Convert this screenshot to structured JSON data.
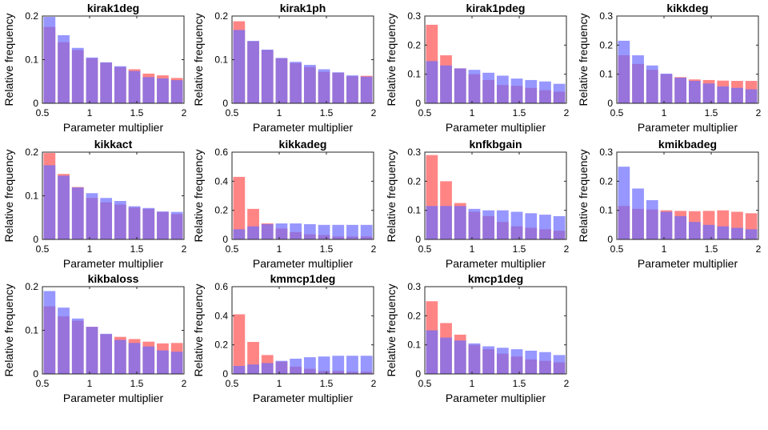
{
  "figure": {
    "background": "#ffffff",
    "red_color": "#ff5c5c",
    "blue_color": "#6b6bff",
    "overlap_color": "#b0306e"
  },
  "chart_data": [
    {
      "type": "bar",
      "title": "kirak1deg",
      "xlabel": "Parameter multiplier",
      "ylabel": "Relative frequency",
      "xlim": [
        0.5,
        2
      ],
      "ylim": [
        0,
        0.2
      ],
      "xticks": [
        "0.5",
        "1",
        "1.5",
        "2"
      ],
      "yticks": [
        "0",
        "0.1",
        "0.2"
      ],
      "x": [
        0.575,
        0.725,
        0.875,
        1.025,
        1.175,
        1.325,
        1.475,
        1.625,
        1.775,
        1.925
      ],
      "series": [
        {
          "name": "red",
          "values": [
            0.175,
            0.14,
            0.122,
            0.103,
            0.093,
            0.083,
            0.078,
            0.068,
            0.064,
            0.058
          ]
        },
        {
          "name": "blue",
          "values": [
            0.198,
            0.156,
            0.127,
            0.105,
            0.094,
            0.085,
            0.074,
            0.06,
            0.057,
            0.053
          ]
        }
      ]
    },
    {
      "type": "bar",
      "title": "kirak1ph",
      "xlabel": "Parameter multiplier",
      "ylabel": "Relative frequency",
      "xlim": [
        0.5,
        2
      ],
      "ylim": [
        0,
        0.2
      ],
      "xticks": [
        "0.5",
        "1",
        "1.5",
        "2"
      ],
      "yticks": [
        "0",
        "0.1",
        "0.2"
      ],
      "x": [
        0.575,
        0.725,
        0.875,
        1.025,
        1.175,
        1.325,
        1.475,
        1.625,
        1.775,
        1.925
      ],
      "series": [
        {
          "name": "red",
          "values": [
            0.188,
            0.142,
            0.122,
            0.103,
            0.092,
            0.083,
            0.072,
            0.07,
            0.062,
            0.063
          ]
        },
        {
          "name": "blue",
          "values": [
            0.168,
            0.143,
            0.123,
            0.104,
            0.095,
            0.088,
            0.078,
            0.071,
            0.064,
            0.061
          ]
        }
      ]
    },
    {
      "type": "bar",
      "title": "kirak1pdeg",
      "xlabel": "Parameter multiplier",
      "ylabel": "Relative frequency",
      "xlim": [
        0.5,
        2
      ],
      "ylim": [
        0,
        0.3
      ],
      "xticks": [
        "0.5",
        "1",
        "1.5",
        "2"
      ],
      "yticks": [
        "0",
        "0.1",
        "0.2",
        "0.3"
      ],
      "x": [
        0.575,
        0.725,
        0.875,
        1.025,
        1.175,
        1.325,
        1.475,
        1.625,
        1.775,
        1.925
      ],
      "series": [
        {
          "name": "red",
          "values": [
            0.27,
            0.165,
            0.12,
            0.1,
            0.08,
            0.063,
            0.06,
            0.053,
            0.045,
            0.04
          ]
        },
        {
          "name": "blue",
          "values": [
            0.145,
            0.13,
            0.12,
            0.115,
            0.105,
            0.095,
            0.085,
            0.08,
            0.075,
            0.067
          ]
        }
      ]
    },
    {
      "type": "bar",
      "title": "kikkdeg",
      "xlabel": "Parameter multiplier",
      "ylabel": "Relative frequency",
      "xlim": [
        0.5,
        2
      ],
      "ylim": [
        0,
        0.3
      ],
      "xticks": [
        "0.5",
        "1",
        "1.5",
        "2"
      ],
      "yticks": [
        "0",
        "0.1",
        "0.2",
        "0.3"
      ],
      "x": [
        0.575,
        0.725,
        0.875,
        1.025,
        1.175,
        1.325,
        1.475,
        1.625,
        1.775,
        1.925
      ],
      "series": [
        {
          "name": "red",
          "values": [
            0.165,
            0.135,
            0.115,
            0.1,
            0.09,
            0.082,
            0.08,
            0.078,
            0.077,
            0.077
          ]
        },
        {
          "name": "blue",
          "values": [
            0.215,
            0.165,
            0.13,
            0.102,
            0.088,
            0.077,
            0.068,
            0.058,
            0.053,
            0.048
          ]
        }
      ]
    },
    {
      "type": "bar",
      "title": "kikkact",
      "xlabel": "Parameter multiplier",
      "ylabel": "Relative frequency",
      "xlim": [
        0.5,
        2
      ],
      "ylim": [
        0,
        0.2
      ],
      "xticks": [
        "0.5",
        "1",
        "1.5",
        "2"
      ],
      "yticks": [
        "0",
        "0.1",
        "0.2"
      ],
      "x": [
        0.575,
        0.725,
        0.875,
        1.025,
        1.175,
        1.325,
        1.475,
        1.625,
        1.775,
        1.925
      ],
      "series": [
        {
          "name": "red",
          "values": [
            0.198,
            0.15,
            0.12,
            0.095,
            0.085,
            0.08,
            0.073,
            0.07,
            0.063,
            0.058
          ]
        },
        {
          "name": "blue",
          "values": [
            0.17,
            0.146,
            0.119,
            0.106,
            0.095,
            0.088,
            0.076,
            0.072,
            0.064,
            0.063
          ]
        }
      ]
    },
    {
      "type": "bar",
      "title": "kikkadeg",
      "xlabel": "Parameter multiplier",
      "ylabel": "Relative frequency",
      "xlim": [
        0.5,
        2
      ],
      "ylim": [
        0,
        0.6
      ],
      "xticks": [
        "0.5",
        "1",
        "1.5",
        "2"
      ],
      "yticks": [
        "0",
        "0.2",
        "0.4",
        "0.6"
      ],
      "x": [
        0.575,
        0.725,
        0.875,
        1.025,
        1.175,
        1.325,
        1.475,
        1.625,
        1.775,
        1.925
      ],
      "series": [
        {
          "name": "red",
          "values": [
            0.43,
            0.21,
            0.11,
            0.075,
            0.05,
            0.035,
            0.03,
            0.02,
            0.02,
            0.02
          ]
        },
        {
          "name": "blue",
          "values": [
            0.07,
            0.09,
            0.105,
            0.11,
            0.11,
            0.105,
            0.1,
            0.1,
            0.1,
            0.1
          ]
        }
      ]
    },
    {
      "type": "bar",
      "title": "knfkbgain",
      "xlabel": "Parameter multiplier",
      "ylabel": "Relative frequency",
      "xlim": [
        0.5,
        2
      ],
      "ylim": [
        0,
        0.3
      ],
      "xticks": [
        "0.5",
        "1",
        "1.5",
        "2"
      ],
      "yticks": [
        "0",
        "0.1",
        "0.2",
        "0.3"
      ],
      "x": [
        0.575,
        0.725,
        0.875,
        1.025,
        1.175,
        1.325,
        1.475,
        1.625,
        1.775,
        1.925
      ],
      "series": [
        {
          "name": "red",
          "values": [
            0.29,
            0.2,
            0.125,
            0.095,
            0.08,
            0.06,
            0.045,
            0.04,
            0.035,
            0.03
          ]
        },
        {
          "name": "blue",
          "values": [
            0.115,
            0.115,
            0.115,
            0.105,
            0.1,
            0.1,
            0.095,
            0.09,
            0.085,
            0.08
          ]
        }
      ]
    },
    {
      "type": "bar",
      "title": "kmikbadeg",
      "xlabel": "Parameter multiplier",
      "ylabel": "Relative frequency",
      "xlim": [
        0.5,
        2
      ],
      "ylim": [
        0,
        0.3
      ],
      "xticks": [
        "0.5",
        "1",
        "1.5",
        "2"
      ],
      "yticks": [
        "0",
        "0.1",
        "0.2",
        "0.3"
      ],
      "x": [
        0.575,
        0.725,
        0.875,
        1.025,
        1.175,
        1.325,
        1.475,
        1.625,
        1.775,
        1.925
      ],
      "series": [
        {
          "name": "red",
          "values": [
            0.115,
            0.105,
            0.103,
            0.1,
            0.098,
            0.097,
            0.098,
            0.1,
            0.095,
            0.09
          ]
        },
        {
          "name": "blue",
          "values": [
            0.25,
            0.175,
            0.135,
            0.095,
            0.08,
            0.06,
            0.05,
            0.045,
            0.04,
            0.035
          ]
        }
      ]
    },
    {
      "type": "bar",
      "title": "kikbaloss",
      "xlabel": "Parameter multiplier",
      "ylabel": "Relative frequency",
      "xlim": [
        0.5,
        2
      ],
      "ylim": [
        0,
        0.2
      ],
      "xticks": [
        "0.5",
        "1",
        "1.5",
        "2"
      ],
      "yticks": [
        "0",
        "0.1",
        "0.2"
      ],
      "x": [
        0.575,
        0.725,
        0.875,
        1.025,
        1.175,
        1.325,
        1.475,
        1.625,
        1.775,
        1.925
      ],
      "series": [
        {
          "name": "red",
          "values": [
            0.155,
            0.132,
            0.122,
            0.108,
            0.091,
            0.085,
            0.08,
            0.074,
            0.07,
            0.071
          ]
        },
        {
          "name": "blue",
          "values": [
            0.19,
            0.152,
            0.127,
            0.108,
            0.092,
            0.078,
            0.071,
            0.063,
            0.054,
            0.051
          ]
        }
      ]
    },
    {
      "type": "bar",
      "title": "kmmcp1deg",
      "xlabel": "Parameter multiplier",
      "ylabel": "Relative frequency",
      "xlim": [
        0.5,
        2
      ],
      "ylim": [
        0,
        0.6
      ],
      "xticks": [
        "0.5",
        "1",
        "1.5",
        "2"
      ],
      "yticks": [
        "0",
        "0.2",
        "0.4",
        "0.6"
      ],
      "x": [
        0.575,
        0.725,
        0.875,
        1.025,
        1.175,
        1.325,
        1.475,
        1.625,
        1.775,
        1.925
      ],
      "series": [
        {
          "name": "red",
          "values": [
            0.41,
            0.22,
            0.13,
            0.085,
            0.05,
            0.035,
            0.02,
            0.02,
            0.015,
            0.015
          ]
        },
        {
          "name": "blue",
          "values": [
            0.055,
            0.065,
            0.075,
            0.09,
            0.105,
            0.115,
            0.12,
            0.125,
            0.125,
            0.125
          ]
        }
      ]
    },
    {
      "type": "bar",
      "title": "kmcp1deg",
      "xlabel": "Parameter multiplier",
      "ylabel": "Relative frequency",
      "xlim": [
        0.5,
        2
      ],
      "ylim": [
        0,
        0.3
      ],
      "xticks": [
        "0.5",
        "1",
        "1.5",
        "2"
      ],
      "yticks": [
        "0",
        "0.1",
        "0.2",
        "0.3"
      ],
      "x": [
        0.575,
        0.725,
        0.875,
        1.025,
        1.175,
        1.325,
        1.475,
        1.625,
        1.775,
        1.925
      ],
      "series": [
        {
          "name": "red",
          "values": [
            0.25,
            0.175,
            0.135,
            0.1,
            0.085,
            0.07,
            0.06,
            0.05,
            0.045,
            0.04
          ]
        },
        {
          "name": "blue",
          "values": [
            0.15,
            0.125,
            0.115,
            0.105,
            0.095,
            0.09,
            0.085,
            0.08,
            0.075,
            0.065
          ]
        }
      ]
    }
  ]
}
